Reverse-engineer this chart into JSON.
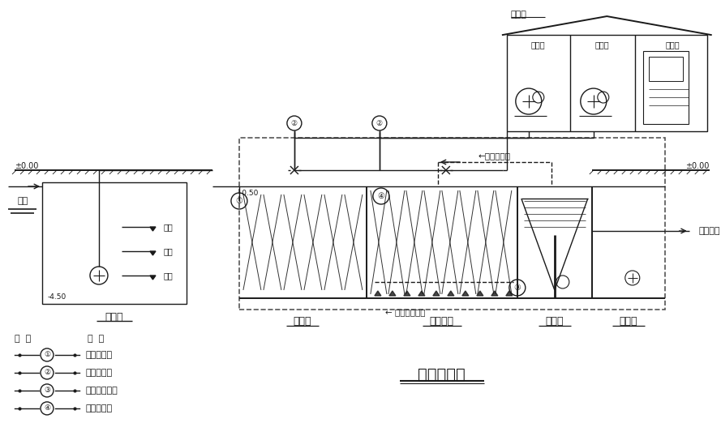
{
  "title": "工艺流程图",
  "bg": "#ffffff",
  "c": "#1a1a1a",
  "legend_items": [
    {
      "sym": "①",
      "label": "系统进水管"
    },
    {
      "sym": "②",
      "label": "系统进风管"
    },
    {
      "sym": "③",
      "label": "硝化液回流管"
    },
    {
      "sym": "④",
      "label": "污泥回流管"
    }
  ]
}
